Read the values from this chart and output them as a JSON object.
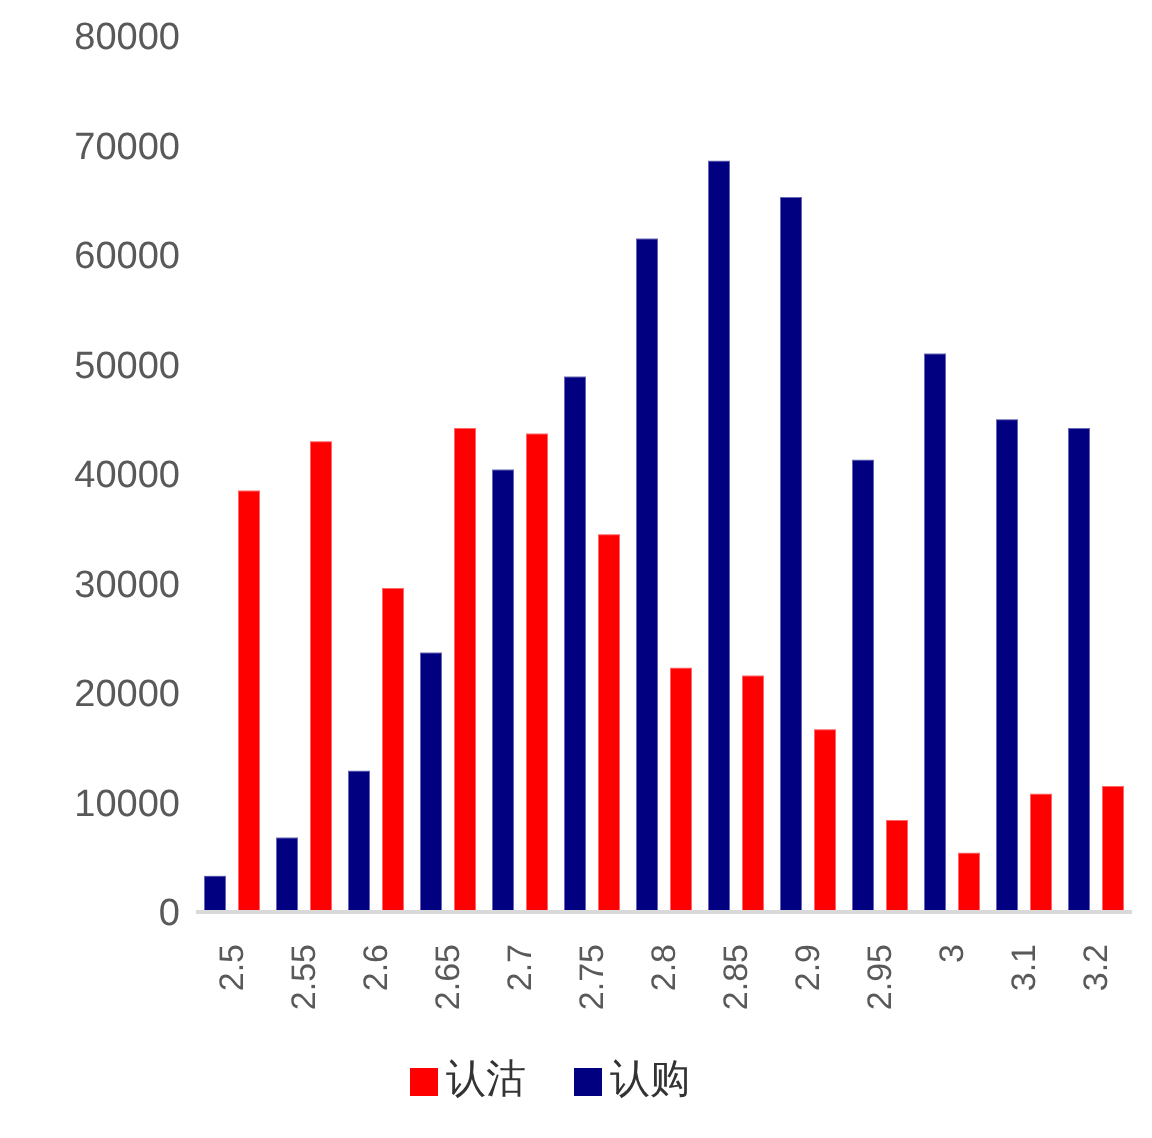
{
  "chart_data": {
    "type": "bar",
    "categories": [
      "2.5",
      "2.55",
      "2.6",
      "2.65",
      "2.7",
      "2.75",
      "2.8",
      "2.85",
      "2.9",
      "2.95",
      "3",
      "3.1",
      "3.2"
    ],
    "series": [
      {
        "name": "认购",
        "color": "#000080",
        "values": [
          3300,
          6800,
          12900,
          23700,
          40400,
          48900,
          61500,
          68600,
          65300,
          41300,
          51000,
          45000,
          44200
        ]
      },
      {
        "name": "认沽",
        "color": "#ff0000",
        "values": [
          38500,
          43000,
          29600,
          44200,
          43700,
          34500,
          22300,
          21600,
          16700,
          8400,
          5400,
          10800,
          11500
        ]
      }
    ],
    "ylim": [
      0,
      80000
    ],
    "yticks": [
      0,
      10000,
      20000,
      30000,
      40000,
      50000,
      60000,
      70000,
      80000
    ],
    "grid": false,
    "legend": "bottom"
  }
}
